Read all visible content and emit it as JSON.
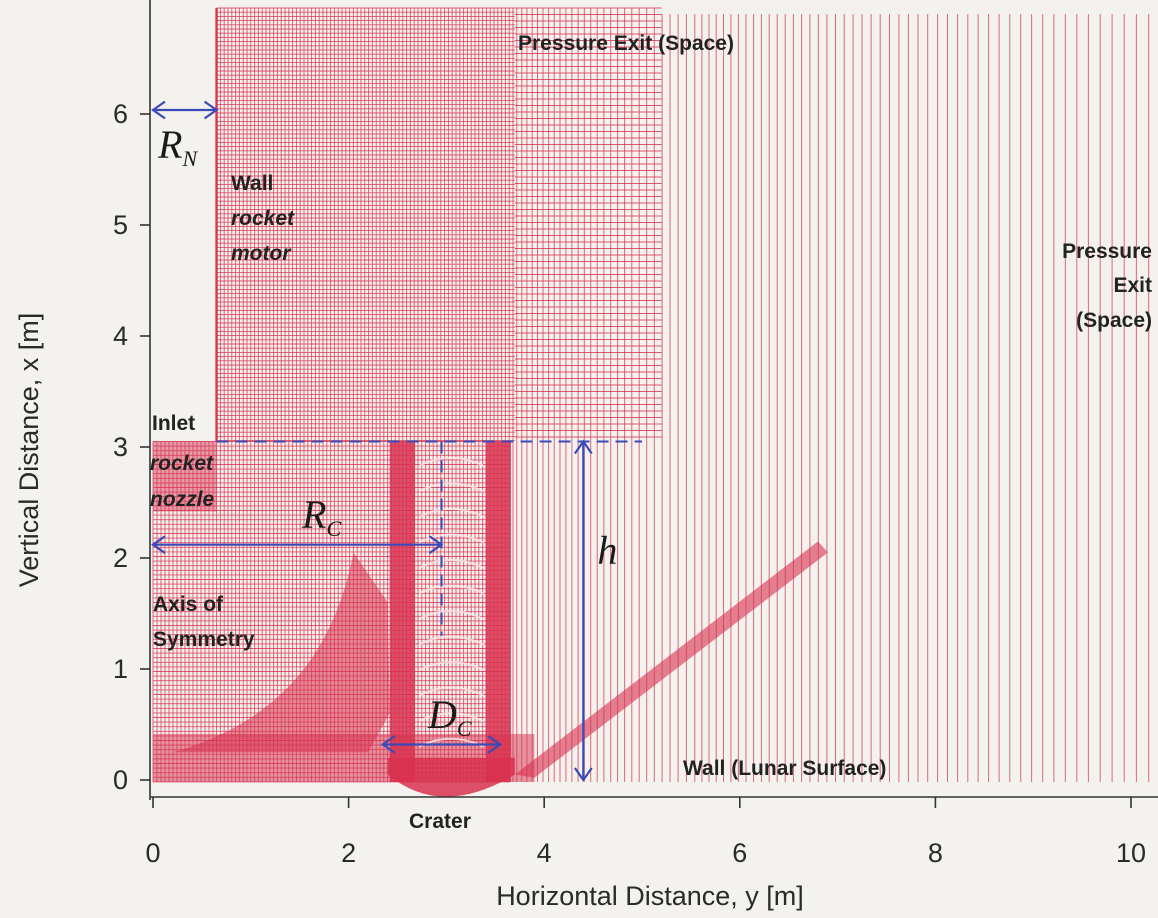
{
  "chart_data": {
    "type": "mesh",
    "xlabel": "Horizontal Distance, y [m]",
    "ylabel": "Vertical Distance, x [m]",
    "xlim": [
      0,
      10.2
    ],
    "ylim": [
      -0.1,
      6.8
    ],
    "xticks": [
      "0",
      "2",
      "4",
      "6",
      "8",
      "10"
    ],
    "xtick_values": [
      0,
      2,
      4,
      6,
      8,
      10
    ],
    "yticks": [
      "0",
      "1",
      "2",
      "3",
      "4",
      "5",
      "6"
    ],
    "ytick_values": [
      0,
      1,
      2,
      3,
      4,
      5,
      6
    ],
    "grid_color": "#d8314f",
    "dimension_color": "#3a4ab8",
    "dims": {
      "nozzle_radius_label": "R",
      "nozzle_radius_sub": "N",
      "crater_radius_label": "R",
      "crater_radius_sub": "C",
      "crater_diameter_label": "D",
      "crater_diameter_sub": "C",
      "height_label": "h",
      "nozzle_radius_m": 0.65,
      "nozzle_exit_height_m": 3.05,
      "crater_center_m": 2.95,
      "crater_diameter_m": 1.1,
      "crater_depth_m": 0.15
    },
    "annotations": {
      "pressure_exit_top": "Pressure Exit (Space)",
      "pressure_exit_right": [
        "Pressure",
        "Exit",
        "(Space)"
      ],
      "wall_motor": [
        "Wall",
        "rocket",
        "motor"
      ],
      "inlet": [
        "Inlet",
        "rocket",
        "nozzle"
      ],
      "axis": [
        "Axis of",
        "Symmetry"
      ],
      "wall_surface": "Wall (Lunar Surface)",
      "crater": "Crater"
    }
  }
}
